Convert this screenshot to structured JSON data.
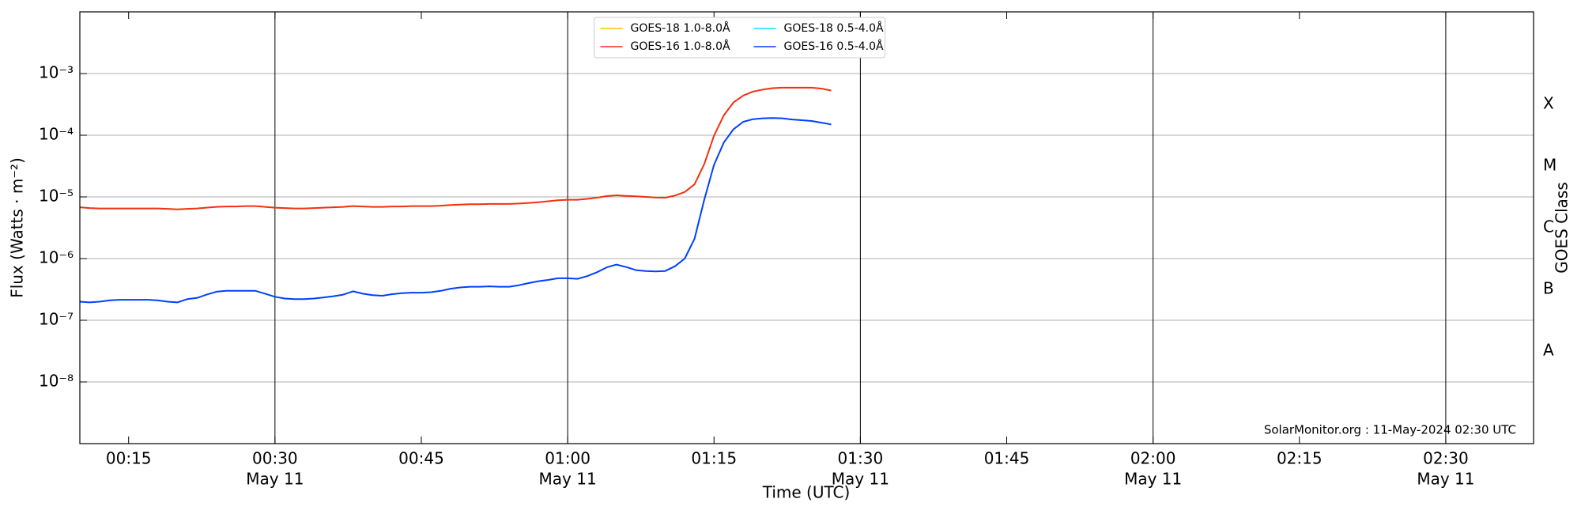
{
  "chart_data": {
    "type": "line",
    "ylabel": "Flux (Watts · m⁻²)",
    "xlabel": "Time (UTC)",
    "y2label": "GOES Class",
    "annotation": "SolarMonitor.org : 11-May-2024 02:30 UTC",
    "log_y": true,
    "grid": true,
    "legend": "upper center",
    "x": [
      "00:10",
      "00:11",
      "00:12",
      "00:13",
      "00:14",
      "00:15",
      "00:16",
      "00:17",
      "00:18",
      "00:19",
      "00:20",
      "00:21",
      "00:22",
      "00:23",
      "00:24",
      "00:25",
      "00:26",
      "00:27",
      "00:28",
      "00:29",
      "00:30",
      "00:31",
      "00:32",
      "00:33",
      "00:34",
      "00:35",
      "00:36",
      "00:37",
      "00:38",
      "00:39",
      "00:40",
      "00:41",
      "00:42",
      "00:43",
      "00:44",
      "00:45",
      "00:46",
      "00:47",
      "00:48",
      "00:49",
      "00:50",
      "00:51",
      "00:52",
      "00:53",
      "00:54",
      "00:55",
      "00:56",
      "00:57",
      "00:58",
      "00:59",
      "01:00",
      "01:01",
      "01:02",
      "01:03",
      "01:04",
      "01:05",
      "01:06",
      "01:07",
      "01:08",
      "01:09",
      "01:10",
      "01:11",
      "01:12",
      "01:13",
      "01:14",
      "01:15",
      "01:16",
      "01:17",
      "01:18",
      "01:19",
      "01:20",
      "01:21",
      "01:22",
      "01:23",
      "01:24",
      "01:25",
      "01:26",
      "01:27"
    ],
    "series": [
      {
        "name": "GOES-18 1.0-8.0Å",
        "color": "#f5c400",
        "values": [
          null,
          null,
          null,
          null,
          null,
          null,
          null,
          null,
          null,
          null,
          null,
          null,
          null,
          null,
          null,
          null,
          null,
          null,
          null,
          null,
          null,
          null,
          null,
          null,
          null,
          null,
          null,
          null,
          null,
          null,
          null,
          null,
          null,
          null,
          null,
          null,
          null,
          null,
          null,
          null,
          null,
          null,
          null,
          null,
          null,
          null,
          null,
          null,
          null,
          null,
          null,
          null,
          null,
          null,
          null,
          null,
          null,
          null,
          null,
          null,
          null,
          null,
          null,
          null,
          null,
          null,
          null,
          null,
          null,
          null,
          null,
          null,
          null,
          null,
          null,
          null,
          null,
          null
        ]
      },
      {
        "name": "GOES-16 1.0-8.0Å",
        "color": "#f03010",
        "values": [
          6.8e-06,
          6.6e-06,
          6.5e-06,
          6.5e-06,
          6.5e-06,
          6.5e-06,
          6.5e-06,
          6.5e-06,
          6.5e-06,
          6.4e-06,
          6.3e-06,
          6.4e-06,
          6.5e-06,
          6.7e-06,
          6.9e-06,
          7e-06,
          7e-06,
          7.1e-06,
          7.1e-06,
          6.9e-06,
          6.7e-06,
          6.6e-06,
          6.5e-06,
          6.5e-06,
          6.6e-06,
          6.7e-06,
          6.8e-06,
          6.9e-06,
          7.1e-06,
          7e-06,
          6.9e-06,
          6.9e-06,
          7e-06,
          7e-06,
          7.1e-06,
          7.1e-06,
          7.1e-06,
          7.2e-06,
          7.4e-06,
          7.5e-06,
          7.6e-06,
          7.6e-06,
          7.7e-06,
          7.7e-06,
          7.7e-06,
          7.8e-06,
          8e-06,
          8.2e-06,
          8.5e-06,
          8.8e-06,
          9e-06,
          9e-06,
          9.3e-06,
          9.7e-06,
          1.03e-05,
          1.06e-05,
          1.04e-05,
          1.02e-05,
          1e-05,
          9.8e-06,
          9.7e-06,
          1.05e-05,
          1.2e-05,
          1.6e-05,
          3.4e-05,
          9.8e-05,
          0.00021,
          0.00034,
          0.00044,
          0.00051,
          0.00055,
          0.00058,
          0.00059,
          0.00059,
          0.00059,
          0.00059,
          0.00057,
          0.00053
        ]
      },
      {
        "name": "GOES-18 0.5-4.0Å",
        "color": "#00e5ff",
        "values": [
          null,
          null,
          null,
          null,
          null,
          null,
          null,
          null,
          null,
          null,
          null,
          null,
          null,
          null,
          null,
          null,
          null,
          null,
          null,
          null,
          null,
          null,
          null,
          null,
          null,
          null,
          null,
          null,
          null,
          null,
          null,
          null,
          null,
          null,
          null,
          null,
          null,
          null,
          null,
          null,
          null,
          null,
          null,
          null,
          null,
          null,
          null,
          null,
          null,
          null,
          null,
          null,
          null,
          null,
          null,
          null,
          null,
          null,
          null,
          null,
          null,
          null,
          null,
          null,
          null,
          null,
          null,
          null,
          null,
          null,
          null,
          null,
          null,
          null,
          null,
          null,
          null,
          null
        ]
      },
      {
        "name": "GOES-16 0.5-4.0Å",
        "color": "#0040ff",
        "values": [
          2e-07,
          1.95e-07,
          2e-07,
          2.1e-07,
          2.15e-07,
          2.15e-07,
          2.15e-07,
          2.15e-07,
          2.1e-07,
          2e-07,
          1.95e-07,
          2.2e-07,
          2.3e-07,
          2.6e-07,
          2.9e-07,
          3e-07,
          3e-07,
          3e-07,
          3e-07,
          2.7e-07,
          2.4e-07,
          2.25e-07,
          2.2e-07,
          2.2e-07,
          2.25e-07,
          2.35e-07,
          2.45e-07,
          2.6e-07,
          2.95e-07,
          2.7e-07,
          2.55e-07,
          2.5e-07,
          2.65e-07,
          2.75e-07,
          2.8e-07,
          2.8e-07,
          2.85e-07,
          3e-07,
          3.25e-07,
          3.4e-07,
          3.5e-07,
          3.5e-07,
          3.55e-07,
          3.5e-07,
          3.5e-07,
          3.7e-07,
          4e-07,
          4.3e-07,
          4.5e-07,
          4.8e-07,
          4.8e-07,
          4.7e-07,
          5.2e-07,
          6e-07,
          7.2e-07,
          8e-07,
          7.3e-07,
          6.5e-07,
          6.3e-07,
          6.2e-07,
          6.3e-07,
          7.5e-07,
          1e-06,
          2.1e-06,
          9e-06,
          3.3e-05,
          7.6e-05,
          0.000125,
          0.000165,
          0.000182,
          0.000188,
          0.00019,
          0.000188,
          0.00018,
          0.000175,
          0.00017,
          0.00016,
          0.00015
        ]
      }
    ],
    "xlim": [
      "00:10",
      "02:39"
    ],
    "xticks": [
      "00:15",
      "00:30",
      "00:45",
      "01:00",
      "01:15",
      "01:30",
      "01:45",
      "02:00",
      "02:15",
      "02:30"
    ],
    "xtick_dates": [
      null,
      "May 11",
      null,
      "May 11",
      null,
      "May 11",
      null,
      "May 11",
      null,
      "May 11"
    ],
    "ylim": [
      1e-09,
      0.01
    ],
    "yticks": [
      {
        "value": 1e-08,
        "label": "10⁻⁸"
      },
      {
        "value": 1e-07,
        "label": "10⁻⁷"
      },
      {
        "value": 1e-06,
        "label": "10⁻⁶"
      },
      {
        "value": 1e-05,
        "label": "10⁻⁵"
      },
      {
        "value": 0.0001,
        "label": "10⁻⁴"
      },
      {
        "value": 0.001,
        "label": "10⁻³"
      }
    ],
    "y2lim": [
      1e-09,
      0.01
    ],
    "y2ticks": [
      {
        "value": 3.162e-08,
        "label": "A"
      },
      {
        "value": 3.162e-07,
        "label": "B"
      },
      {
        "value": 3.162e-06,
        "label": "C"
      },
      {
        "value": 3.162e-05,
        "label": "M"
      },
      {
        "value": 0.0003162,
        "label": "X"
      }
    ]
  }
}
